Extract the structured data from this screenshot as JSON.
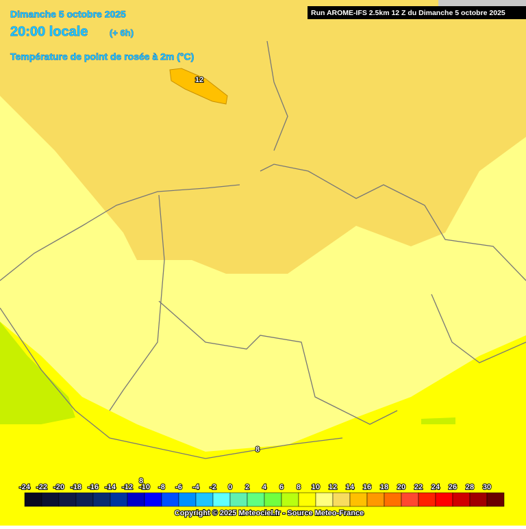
{
  "header": {
    "date": "Dimanche 5 octobre 2025",
    "time": "20:00 locale",
    "offset": "(+ 6h)",
    "variable": "Température de point de rosée à 2m (°C)",
    "run": "Run AROME-IFS 2.5km 12 Z du Dimanche 5 octobre 2025"
  },
  "contour_labels": [
    "12",
    "8",
    "8"
  ],
  "legend": {
    "ticks": [
      -24,
      -22,
      -20,
      -18,
      -16,
      -14,
      -12,
      -10,
      -8,
      -6,
      -4,
      -2,
      0,
      2,
      4,
      6,
      8,
      10,
      12,
      14,
      16,
      18,
      20,
      22,
      24,
      26,
      28,
      30
    ],
    "colors": [
      "#0a0a20",
      "#0c1232",
      "#101a44",
      "#0e2254",
      "#0a2c70",
      "#0034a0",
      "#0000c8",
      "#0000ff",
      "#0050ff",
      "#0090ff",
      "#20c4ff",
      "#60ffff",
      "#60f0b0",
      "#60ff80",
      "#70ff40",
      "#b8ff10",
      "#ffff00",
      "#ffff80",
      "#f8dc60",
      "#ffc000",
      "#ff9800",
      "#ff7000",
      "#ff4830",
      "#ff2000",
      "#ff0000",
      "#d00000",
      "#a00000",
      "#6a0000"
    ]
  },
  "footer": "Copyright © 2025 Meteociel.fr - Source Meteo-France"
}
